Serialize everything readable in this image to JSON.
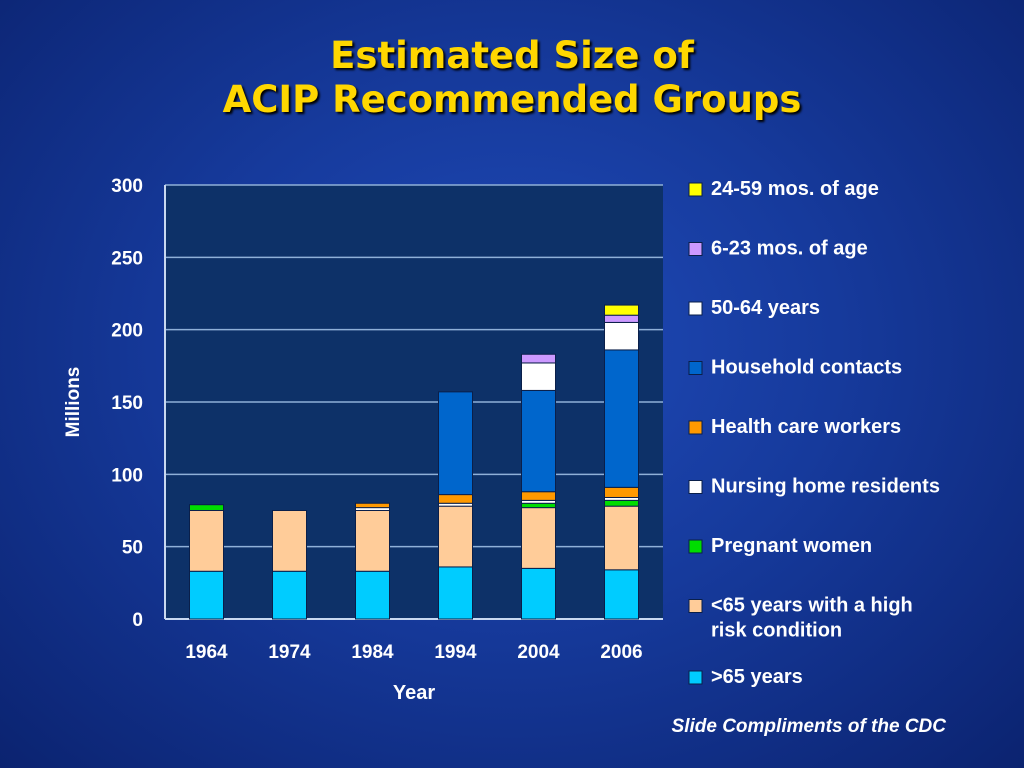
{
  "slide": {
    "title_line1": "Estimated Size of",
    "title_line2": "ACIP Recommended Groups",
    "credit": "Slide Compliments of the CDC"
  },
  "colors": {
    "plot_bg": "#0d3168",
    "gridline": "#8fb0d8",
    "text": "#ffffff",
    "title": "#ffd700"
  },
  "chart_data": {
    "type": "bar",
    "stacked": true,
    "xlabel": "Year",
    "ylabel": "Millions",
    "ylim": [
      0,
      300
    ],
    "yticks": [
      0,
      50,
      100,
      150,
      200,
      250,
      300
    ],
    "grid": true,
    "legend_position": "right",
    "categories": [
      "1964",
      "1974",
      "1984",
      "1994",
      "2004",
      "2006"
    ],
    "series": [
      {
        "name": ">65 years",
        "color": "#00ccff",
        "values": [
          33,
          33,
          33,
          36,
          35,
          34
        ]
      },
      {
        "name": "<65 years with a high risk condition",
        "color": "#ffcc99",
        "values": [
          42,
          42,
          42,
          42,
          42,
          44
        ]
      },
      {
        "name": "Pregnant women",
        "color": "#00dd00",
        "values": [
          4,
          0,
          0,
          0,
          3,
          4
        ]
      },
      {
        "name": "Nursing home residents",
        "color": "#ffffff",
        "values": [
          0,
          0,
          2,
          2,
          2,
          2
        ]
      },
      {
        "name": "Health care workers",
        "color": "#ff9900",
        "values": [
          0,
          0,
          3,
          6,
          6,
          7
        ]
      },
      {
        "name": "Household contacts",
        "color": "#0066cc",
        "values": [
          0,
          0,
          0,
          71,
          70,
          95
        ]
      },
      {
        "name": "50-64 years",
        "color": "#ffffff",
        "values": [
          0,
          0,
          0,
          0,
          19,
          19
        ]
      },
      {
        "name": "6-23 mos. of age",
        "color": "#cc99ff",
        "values": [
          0,
          0,
          0,
          0,
          6,
          5
        ]
      },
      {
        "name": "24-59 mos. of age",
        "color": "#ffff00",
        "values": [
          0,
          0,
          0,
          0,
          0,
          7
        ]
      }
    ],
    "legend_order": [
      "24-59 mos. of age",
      "6-23 mos. of age",
      "50-64 years",
      "Household contacts",
      "Health care workers",
      "Nursing home residents",
      "Pregnant women",
      "<65 years with a high risk condition",
      ">65 years"
    ]
  }
}
